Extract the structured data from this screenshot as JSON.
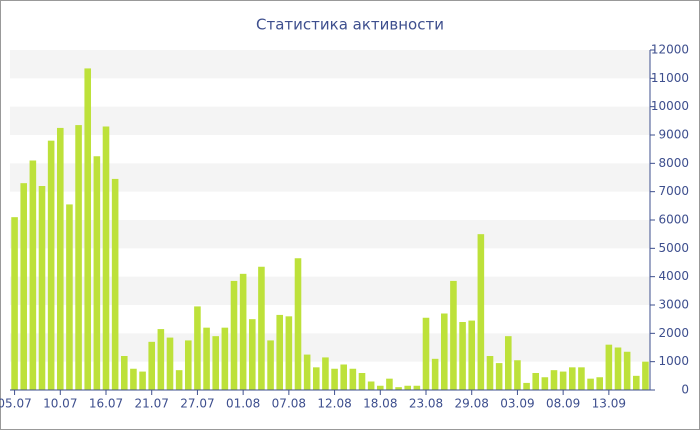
{
  "chart_data": {
    "type": "bar",
    "title": "Статистика активности",
    "categories": [
      "05.07",
      null,
      null,
      null,
      null,
      "10.07",
      null,
      null,
      null,
      null,
      "16.07",
      null,
      null,
      null,
      null,
      "21.07",
      null,
      null,
      null,
      null,
      "27.07",
      null,
      null,
      null,
      null,
      "01.08",
      null,
      null,
      null,
      null,
      "07.08",
      null,
      null,
      null,
      null,
      "12.08",
      null,
      null,
      null,
      null,
      "18.08",
      null,
      null,
      null,
      null,
      "23.08",
      null,
      null,
      null,
      null,
      "29.08",
      null,
      null,
      null,
      null,
      "03.09",
      null,
      null,
      null,
      null,
      "08.09",
      null,
      null,
      null,
      null,
      "13.09",
      null,
      null,
      null,
      null
    ],
    "values": [
      6100,
      7300,
      8100,
      7200,
      8800,
      9250,
      6550,
      9350,
      11350,
      8250,
      9300,
      7450,
      1200,
      750,
      650,
      1700,
      2150,
      1850,
      700,
      1750,
      2950,
      2200,
      1900,
      2200,
      3850,
      4100,
      2500,
      4350,
      1750,
      2650,
      2600,
      4650,
      1250,
      800,
      1150,
      750,
      900,
      750,
      600,
      300,
      150,
      400,
      100,
      150,
      150,
      2550,
      1100,
      2700,
      3850,
      2400,
      2450,
      5500,
      1200,
      950,
      1900,
      1050,
      250,
      600,
      450,
      700,
      650,
      800,
      800,
      400,
      450,
      1600,
      1500,
      1350,
      500,
      1000
    ],
    "color": "#bde13a",
    "ylim": [
      0,
      12000
    ],
    "yticks": [
      0,
      1000,
      2000,
      3000,
      4000,
      5000,
      6000,
      7000,
      8000,
      9000,
      10000,
      11000,
      12000
    ],
    "grid": true
  }
}
